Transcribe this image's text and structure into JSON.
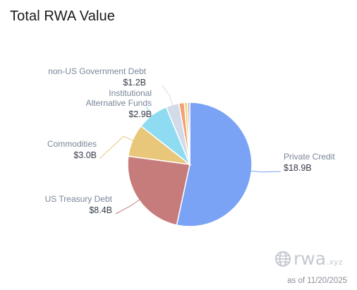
{
  "header": {
    "title": "Total RWA Value"
  },
  "chart_data": {
    "type": "pie",
    "title": "Total RWA Value",
    "slices": [
      {
        "name": "Private Credit",
        "value": 18.9,
        "label": "$18.9B",
        "color": "#7ba3f5",
        "show_label": true
      },
      {
        "name": "US Treasury Debt",
        "value": 8.4,
        "label": "$8.4B",
        "color": "#c77c7c",
        "show_label": true
      },
      {
        "name": "Commodities",
        "value": 3.0,
        "label": "$3.0B",
        "color": "#e8c77a",
        "show_label": true
      },
      {
        "name": "Institutional Alternative Funds",
        "value": 2.9,
        "label": "$2.9B",
        "color": "#8fdcf2",
        "show_label": true
      },
      {
        "name": "non-US Government Debt",
        "value": 1.2,
        "label": "$1.2B",
        "color": "#d3dbe8",
        "show_label": true
      },
      {
        "name": "",
        "value": 0.5,
        "label": "",
        "color": "#f4a07a",
        "show_label": false
      },
      {
        "name": "",
        "value": 0.3,
        "label": "",
        "color": "#f2d77a",
        "show_label": false
      },
      {
        "name": "",
        "value": 0.2,
        "label": "",
        "color": "#b9a3e8",
        "show_label": false
      }
    ]
  },
  "watermark": {
    "brand": "rwa",
    "suffix": ".xyz",
    "as_of": "as of 11/20/2025"
  }
}
